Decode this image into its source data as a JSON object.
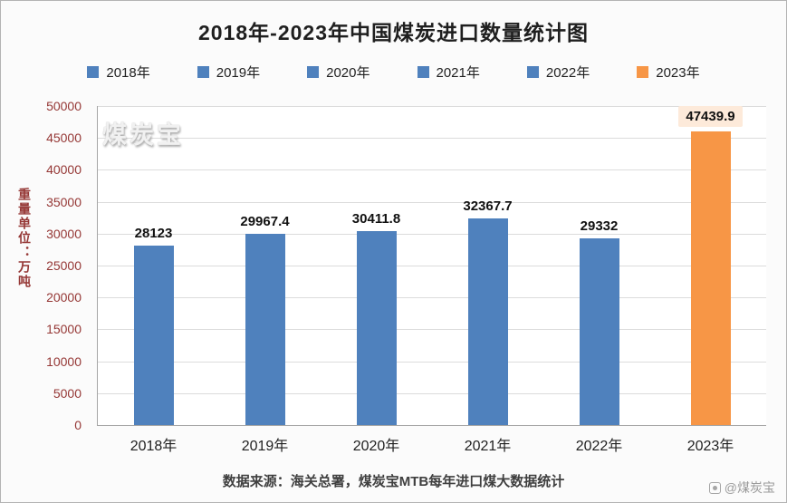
{
  "chart_data": {
    "type": "bar",
    "title": "2018年-2023年中国煤炭进口数量统计图",
    "categories": [
      "2018年",
      "2019年",
      "2020年",
      "2021年",
      "2022年",
      "2023年"
    ],
    "values": [
      28123,
      29967.4,
      30411.8,
      32367.7,
      29332,
      47439.9
    ],
    "value_labels": [
      "28123",
      "29967.4",
      "30411.8",
      "32367.7",
      "29332",
      "47439.9"
    ],
    "highlight_index": 5,
    "highlight_label_bg": "#fdeada",
    "bar_colors": [
      "#4f81bd",
      "#4f81bd",
      "#4f81bd",
      "#4f81bd",
      "#4f81bd",
      "#f79646"
    ],
    "xlabel": "",
    "ylabel": "重量单位：万吨",
    "ylim": [
      0,
      50000
    ],
    "ytick_step": 5000,
    "grid": true,
    "legend_position": "top",
    "legend": [
      {
        "label": "2018年",
        "color": "#4f81bd"
      },
      {
        "label": "2019年",
        "color": "#4f81bd"
      },
      {
        "label": "2020年",
        "color": "#4f81bd"
      },
      {
        "label": "2021年",
        "color": "#4f81bd"
      },
      {
        "label": "2022年",
        "color": "#4f81bd"
      },
      {
        "label": "2023年",
        "color": "#f79646"
      }
    ],
    "source": "数据来源：海关总署，煤炭宝MTB每年进口煤大数据统计"
  },
  "watermarks": {
    "plot_top_left": "煤炭宝",
    "bottom_right": "@煤炭宝"
  },
  "colors": {
    "axis_tick_text": "#953735",
    "gridline": "#dcdcdc",
    "bar_blue": "#4f81bd",
    "bar_orange": "#f79646"
  }
}
